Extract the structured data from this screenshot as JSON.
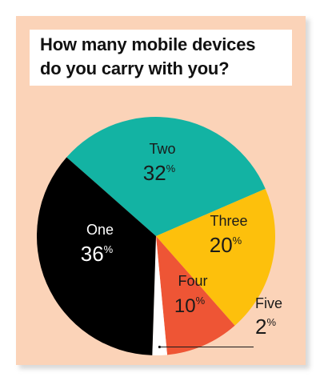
{
  "chart_data": {
    "type": "pie",
    "title_lines": [
      "How many mobile devices",
      "do you carry with you?"
    ],
    "unit": "%",
    "slices": [
      {
        "label": "One",
        "value": 36,
        "color": "#000000",
        "label_color": "#ffffff"
      },
      {
        "label": "Two",
        "value": 32,
        "color": "#13b3a3",
        "label_color": "#1a1a1a"
      },
      {
        "label": "Three",
        "value": 20,
        "color": "#fdc00c",
        "label_color": "#1a1a1a"
      },
      {
        "label": "Four",
        "value": 10,
        "color": "#ee5535",
        "label_color": "#1a1a1a"
      },
      {
        "label": "Five",
        "value": 2,
        "color": "#ffffff",
        "label_color": "#1a1a1a"
      }
    ]
  }
}
